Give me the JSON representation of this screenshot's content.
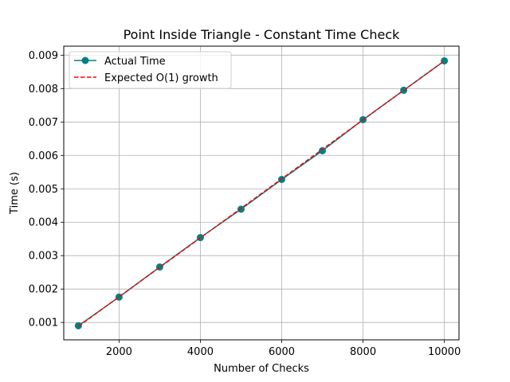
{
  "chart_data": {
    "type": "line",
    "title": "Point Inside Triangle - Constant Time Check",
    "xlabel": "Number of Checks",
    "ylabel": "Time (s)",
    "xlim": [
      640,
      10360
    ],
    "ylim": [
      0.00048,
      0.00927
    ],
    "xticks": [
      2000,
      4000,
      6000,
      8000,
      10000
    ],
    "xtick_labels": [
      "2000",
      "4000",
      "6000",
      "8000",
      "10000"
    ],
    "yticks": [
      0.001,
      0.002,
      0.003,
      0.004,
      0.005,
      0.006,
      0.007,
      0.008,
      0.009
    ],
    "ytick_labels": [
      "0.001",
      "0.002",
      "0.003",
      "0.004",
      "0.005",
      "0.006",
      "0.007",
      "0.008",
      "0.009"
    ],
    "grid": true,
    "legend_position": "top-left",
    "x": [
      1000,
      2000,
      3000,
      4000,
      5000,
      6000,
      7000,
      8000,
      9000,
      10000
    ],
    "series": [
      {
        "name": "Actual Time",
        "style": "solid-marker",
        "color": "#008080",
        "values": [
          0.0009,
          0.00176,
          0.00266,
          0.00354,
          0.00439,
          0.00528,
          0.00614,
          0.00707,
          0.00795,
          0.00883
        ]
      },
      {
        "name": "Expected O(1) growth",
        "style": "dashed",
        "color": "#ff0000",
        "values": [
          0.000883,
          0.001766,
          0.002649,
          0.003532,
          0.004415,
          0.005298,
          0.006181,
          0.007064,
          0.007947,
          0.00883
        ]
      }
    ]
  }
}
